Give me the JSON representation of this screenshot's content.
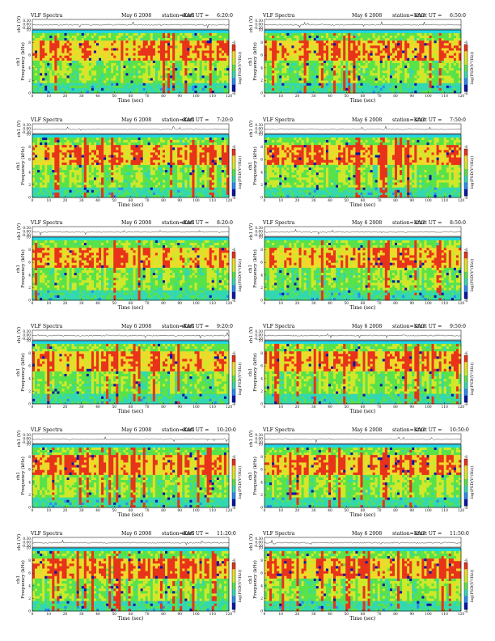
{
  "header": {
    "title": "VLF Spectra",
    "date": "May 6 2008",
    "station": "station=KAG",
    "start_prefix": "start  UT ="
  },
  "labels": {
    "ch1_volts": "ch1 (V)",
    "ylabel": "Frequency  (kHz)",
    "ylabel_channel": "ch1",
    "xlabel": "Time  (sec)",
    "colorbar": "log(PSD(V²/Hz))"
  },
  "colors": {
    "spectrogram_scale": [
      "#0b16a8",
      "#2a8cf2",
      "#34d8b0",
      "#59e24a",
      "#cfe92a",
      "#f2d82a",
      "#e8331a"
    ],
    "cyan_band": "#20d8e8",
    "trace": "#000000",
    "axis": "#000000"
  },
  "chart_data": [
    {
      "type": "heatmap",
      "panel": "6:20:0 left",
      "start_ut": "6:20:0",
      "x_range": [
        0,
        120
      ],
      "y_range": [
        0,
        10
      ],
      "x_ticks": [
        "0",
        "10",
        "20",
        "30",
        "40",
        "50",
        "60",
        "70",
        "80",
        "90",
        "100",
        "110",
        "120"
      ],
      "y_ticks": [
        "0",
        "2",
        "4",
        "6",
        "8",
        "10"
      ],
      "ch1_ticks": [
        "0.30",
        "0.00",
        "-0.30"
      ],
      "cbar_ticks": [
        "-6",
        "-8"
      ]
    },
    {
      "type": "heatmap",
      "panel": "6:50:0 right",
      "start_ut": "6:50:0",
      "x_range": [
        0,
        120
      ],
      "y_range": [
        0,
        10
      ],
      "x_ticks": [
        "0",
        "10",
        "20",
        "30",
        "40",
        "50",
        "60",
        "70",
        "80",
        "90",
        "100",
        "110",
        "120"
      ],
      "y_ticks": [
        "0",
        "2",
        "4",
        "6",
        "8",
        "10"
      ],
      "ch1_ticks": [
        "0.30",
        "0.00",
        "-0.30"
      ],
      "cbar_ticks": [
        "-6",
        "-8"
      ]
    },
    {
      "type": "heatmap",
      "panel": "7:20:0 left",
      "start_ut": "7:20:0",
      "x_range": [
        0,
        120
      ],
      "y_range": [
        0,
        10
      ],
      "x_ticks": [
        "0",
        "10",
        "20",
        "30",
        "40",
        "50",
        "60",
        "70",
        "80",
        "90",
        "100",
        "110",
        "120"
      ],
      "y_ticks": [
        "0",
        "2",
        "4",
        "6",
        "8",
        "10"
      ],
      "ch1_ticks": [
        "0.30",
        "0.00",
        "-0.30"
      ],
      "cbar_ticks": [
        "-6",
        "-8"
      ]
    },
    {
      "type": "heatmap",
      "panel": "7:50:0 right",
      "start_ut": "7:50:0",
      "x_range": [
        0,
        120
      ],
      "y_range": [
        0,
        10
      ],
      "x_ticks": [
        "0",
        "10",
        "20",
        "30",
        "40",
        "50",
        "60",
        "70",
        "80",
        "90",
        "100",
        "110",
        "120"
      ],
      "y_ticks": [
        "0",
        "2",
        "4",
        "6",
        "8",
        "10"
      ],
      "ch1_ticks": [
        "0.30",
        "0.00",
        "-0.30"
      ],
      "cbar_ticks": [
        "-6",
        "-8"
      ]
    },
    {
      "type": "heatmap",
      "panel": "8:20:0 left",
      "start_ut": "8:20:0",
      "x_range": [
        0,
        120
      ],
      "y_range": [
        0,
        10
      ],
      "x_ticks": [
        "0",
        "10",
        "20",
        "30",
        "40",
        "50",
        "60",
        "70",
        "80",
        "90",
        "100",
        "110",
        "120"
      ],
      "y_ticks": [
        "0",
        "2",
        "4",
        "6",
        "8",
        "10"
      ],
      "ch1_ticks": [
        "0.30",
        "0.00",
        "-0.30"
      ],
      "cbar_ticks": [
        "-6",
        "-8"
      ]
    },
    {
      "type": "heatmap",
      "panel": "8:50:0 right",
      "start_ut": "8:50:0",
      "x_range": [
        0,
        120
      ],
      "y_range": [
        0,
        10
      ],
      "x_ticks": [
        "0",
        "10",
        "20",
        "30",
        "40",
        "50",
        "60",
        "70",
        "80",
        "90",
        "100",
        "110",
        "120"
      ],
      "y_ticks": [
        "0",
        "2",
        "4",
        "6",
        "8",
        "10"
      ],
      "ch1_ticks": [
        "0.30",
        "0.00",
        "-0.30"
      ],
      "cbar_ticks": [
        "-6",
        "-8"
      ]
    },
    {
      "type": "heatmap",
      "panel": "9:20:0 left",
      "start_ut": "9:20:0",
      "x_range": [
        0,
        120
      ],
      "y_range": [
        0,
        10
      ],
      "x_ticks": [
        "0",
        "10",
        "20",
        "30",
        "40",
        "50",
        "60",
        "70",
        "80",
        "90",
        "100",
        "110",
        "120"
      ],
      "y_ticks": [
        "0",
        "2",
        "4",
        "6",
        "8",
        "10"
      ],
      "ch1_ticks": [
        "0.30",
        "0.00",
        "-0.30"
      ],
      "cbar_ticks": [
        "-6",
        "-8"
      ]
    },
    {
      "type": "heatmap",
      "panel": "9:50:0 right",
      "start_ut": "9:50:0",
      "x_range": [
        0,
        120
      ],
      "y_range": [
        0,
        10
      ],
      "x_ticks": [
        "0",
        "10",
        "20",
        "30",
        "40",
        "50",
        "60",
        "70",
        "80",
        "90",
        "100",
        "110",
        "120"
      ],
      "y_ticks": [
        "0",
        "2",
        "4",
        "6",
        "8",
        "10"
      ],
      "ch1_ticks": [
        "0.30",
        "0.00",
        "-0.30"
      ],
      "cbar_ticks": [
        "-6",
        "-8"
      ]
    },
    {
      "type": "heatmap",
      "panel": "10:20:0 left",
      "start_ut": "10:20:0",
      "x_range": [
        0,
        120
      ],
      "y_range": [
        0,
        10
      ],
      "x_ticks": [
        "0",
        "10",
        "20",
        "30",
        "40",
        "50",
        "60",
        "70",
        "80",
        "90",
        "100",
        "110",
        "120"
      ],
      "y_ticks": [
        "0",
        "2",
        "4",
        "6",
        "8",
        "10"
      ],
      "ch1_ticks": [
        "0.30",
        "0.00",
        "-0.30"
      ],
      "cbar_ticks": [
        "-6",
        "-8"
      ]
    },
    {
      "type": "heatmap",
      "panel": "10:50:0 right",
      "start_ut": "10:50:0",
      "x_range": [
        0,
        120
      ],
      "y_range": [
        0,
        10
      ],
      "x_ticks": [
        "0",
        "10",
        "20",
        "30",
        "40",
        "50",
        "60",
        "70",
        "80",
        "90",
        "100",
        "110",
        "120"
      ],
      "y_ticks": [
        "0",
        "2",
        "4",
        "6",
        "8",
        "10"
      ],
      "ch1_ticks": [
        "0.30",
        "0.00",
        "-0.30"
      ],
      "cbar_ticks": [
        "-6",
        "-8"
      ]
    },
    {
      "type": "heatmap",
      "panel": "11:20:0 left",
      "start_ut": "11:20:0",
      "x_range": [
        0,
        120
      ],
      "y_range": [
        0,
        10
      ],
      "x_ticks": [
        "0",
        "10",
        "20",
        "30",
        "40",
        "50",
        "60",
        "70",
        "80",
        "90",
        "100",
        "110",
        "120"
      ],
      "y_ticks": [
        "0",
        "2",
        "4",
        "6",
        "8",
        "10"
      ],
      "ch1_ticks": [
        "0.30",
        "0.00",
        "-0.30"
      ],
      "cbar_ticks": [
        "-6",
        "-8"
      ]
    },
    {
      "type": "heatmap",
      "panel": "11:50:0 right",
      "start_ut": "11:50:0",
      "x_range": [
        0,
        120
      ],
      "y_range": [
        0,
        10
      ],
      "x_ticks": [
        "0",
        "10",
        "20",
        "30",
        "40",
        "50",
        "60",
        "70",
        "80",
        "90",
        "100",
        "110",
        "120"
      ],
      "y_ticks": [
        "0",
        "2",
        "4",
        "6",
        "8",
        "10"
      ],
      "ch1_ticks": [
        "0.30",
        "0.00",
        "-0.30"
      ],
      "cbar_ticks": [
        "-6",
        "-8"
      ]
    }
  ]
}
